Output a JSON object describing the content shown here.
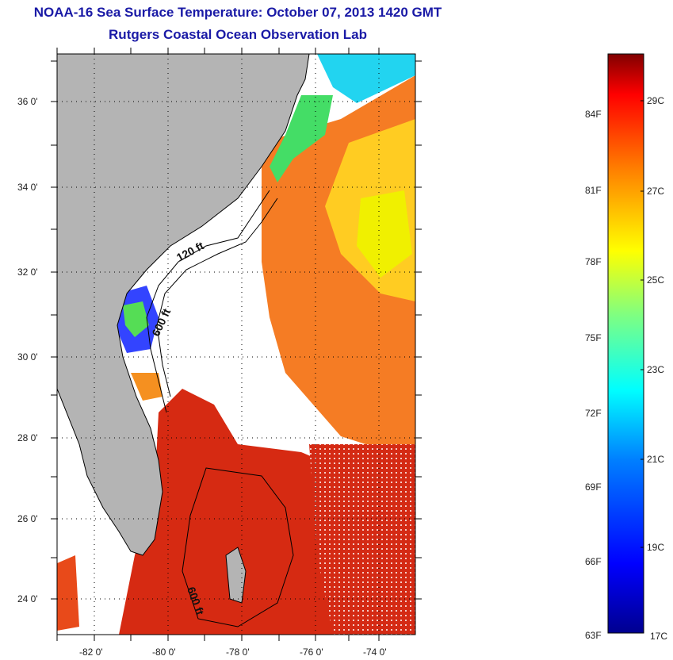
{
  "header": {
    "title": "NOAA-16 Sea Surface Temperature:  October 07, 2013 1420 GMT",
    "subtitle": "Rutgers Coastal Ocean Observation Lab"
  },
  "map": {
    "lon_ticks": [
      "-82 0'",
      "-80 0'",
      "-78 0'",
      "-76 0'",
      "-74 0'"
    ],
    "lat_ticks": [
      "36 0'",
      "34 0'",
      "32 0'",
      "30 0'",
      "28 0'",
      "26 0'",
      "24 0'"
    ],
    "lon_range": [
      -83,
      -73
    ],
    "lat_range": [
      23,
      37
    ],
    "contours": [
      {
        "label": "120 ft"
      },
      {
        "label": "600 ft"
      },
      {
        "label": "600 ft"
      }
    ],
    "colors": {
      "land": "#b4b4b4",
      "cloud": "#ffffff",
      "coast": "#000000"
    }
  },
  "colorbar": {
    "fahrenheit_labels": [
      "84F",
      "81F",
      "78F",
      "75F",
      "72F",
      "69F",
      "66F",
      "63F"
    ],
    "celsius_labels": [
      "29C",
      "27C",
      "25C",
      "23C",
      "21C",
      "19C",
      "17C"
    ],
    "range_c": [
      17,
      30
    ],
    "colors": [
      "#00008f",
      "#0000ff",
      "#0080ff",
      "#00ffff",
      "#80ff80",
      "#ffff00",
      "#ff8000",
      "#ff0000",
      "#800000"
    ]
  }
}
